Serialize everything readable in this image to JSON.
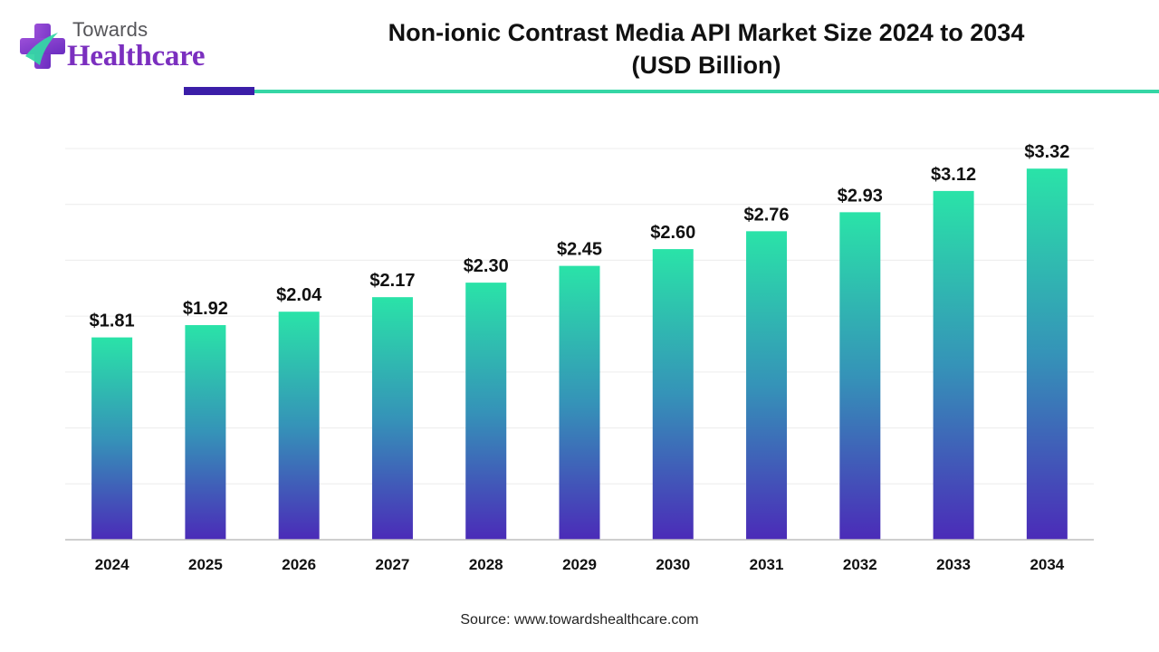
{
  "logo": {
    "line1": "Towards",
    "line2": "Healthcare",
    "icon": "healthcare-cross-logo-icon"
  },
  "header": {
    "title_line1": "Non-ionic Contrast Media API Market Size 2024 to 2034",
    "title_line2": "(USD Billion)"
  },
  "colors": {
    "bar_top": "#2ae3a8",
    "bar_mid": "#3593b8",
    "bar_bottom": "#4b2bb8",
    "accent_dark": "#3b1ea8",
    "accent_green": "#35d6a5",
    "brand_purple": "#7b2fbf"
  },
  "chart_data": {
    "type": "bar",
    "title": "Non-ionic Contrast Media API Market Size 2024 to 2034 (USD Billion)",
    "xlabel": "",
    "ylabel": "",
    "categories": [
      "2024",
      "2025",
      "2026",
      "2027",
      "2028",
      "2029",
      "2030",
      "2031",
      "2032",
      "2033",
      "2034"
    ],
    "values": [
      1.81,
      1.92,
      2.04,
      2.17,
      2.3,
      2.45,
      2.6,
      2.76,
      2.93,
      3.12,
      3.32
    ],
    "value_labels": [
      "$1.81",
      "$1.92",
      "$2.04",
      "$2.17",
      "$2.30",
      "$2.45",
      "$2.60",
      "$2.76",
      "$2.93",
      "$3.12",
      "$3.32"
    ],
    "ylim": [
      0,
      3.5
    ],
    "grid": true,
    "legend": "none"
  },
  "footer": {
    "source": "Source: www.towardshealthcare.com"
  }
}
